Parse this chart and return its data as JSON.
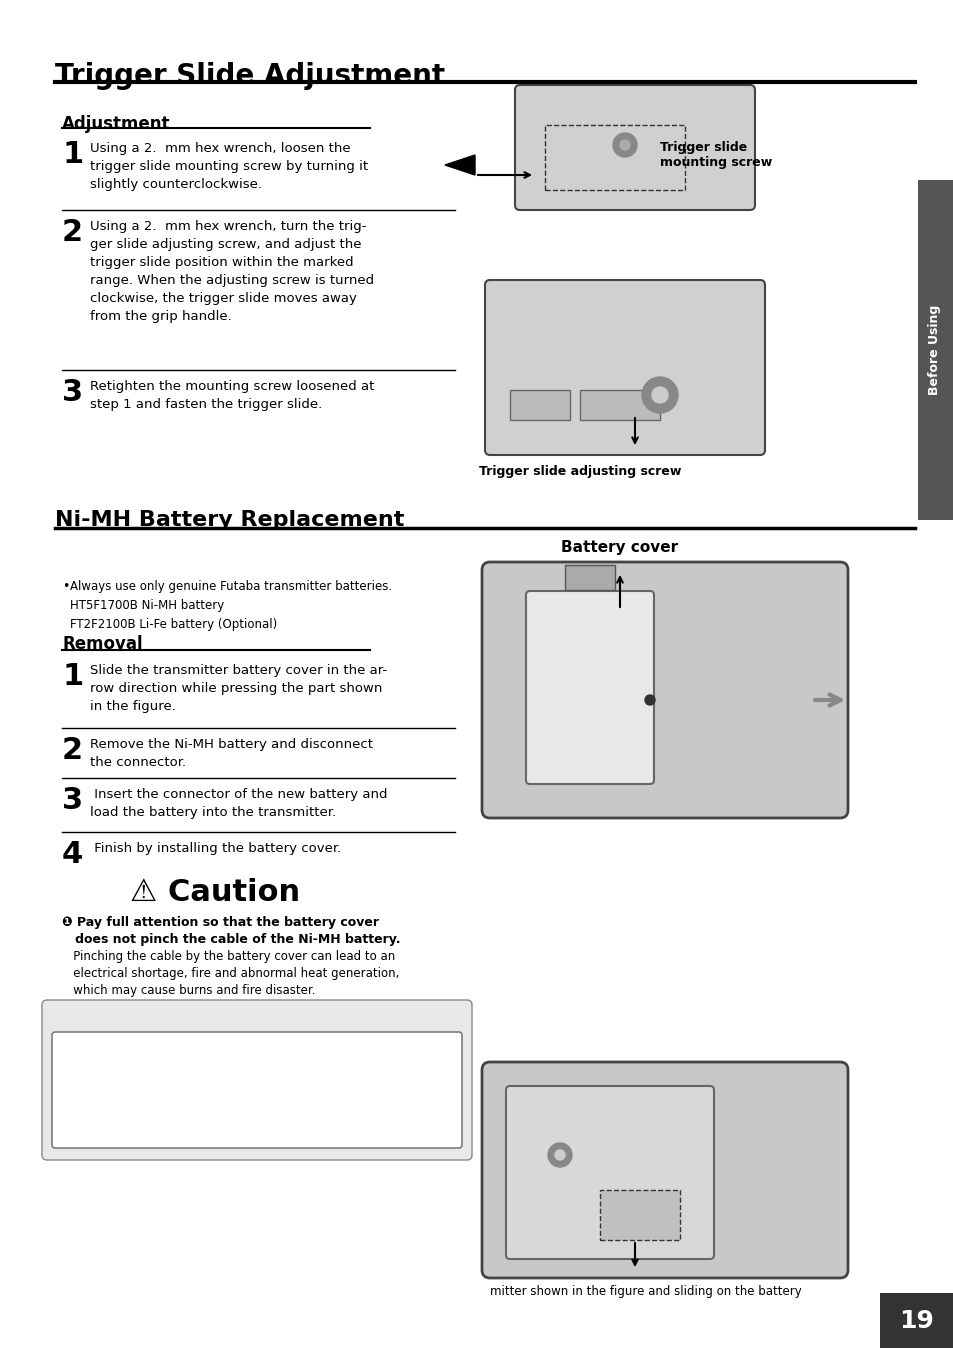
{
  "page_title": "Trigger Slide Adjustment",
  "section1_sub": "Adjustment",
  "step1_num": "1",
  "step1_text": "Using a 2.  mm hex wrench, loosen the\ntrigger slide mounting screw by turning it\nslightly counterclockwise.",
  "step2_num": "2",
  "step2_text": "Using a 2.  mm hex wrench, turn the trig-\nger slide adjusting screw, and adjust the\ntrigger slide position within the marked\nrange. When the adjusting screw is turned\nclockwise, the trigger slide moves away\nfrom the grip handle.",
  "step3_num": "3",
  "step3_text": "Retighten the mounting screw loosened at\nstep 1 and fasten the trigger slide.",
  "img1_label1": "Trigger slide\nmounting screw",
  "img1_label2": "Trigger slide adjusting screw",
  "section2_title": "Ni-MH Battery Replacement",
  "bullet_text": "Always use only genuine Futaba transmitter batteries.\nHT5F1700B Ni-MH battery\nFT2F2100B Li-Fe battery (Optional)",
  "section2_sub": "Removal",
  "rem1_num": "1",
  "rem1_text": "Slide the transmitter battery cover in the ar-\nrow direction while pressing the part shown\nin the figure.",
  "rem2_num": "2",
  "rem2_text": "Remove the Ni-MH battery and disconnect\nthe connector.",
  "rem3_num": "3",
  "rem3_text": " Insert the connector of the new battery and\nload the battery into the transmitter.",
  "rem4_num": "4",
  "rem4_text": " Finish by installing the battery cover.",
  "battery_label": "Battery cover",
  "caution_title": "⚠ Caution",
  "caution_bold": "❶ Pay full attention so that the battery cover\n   does not pinch the cable of the Ni-MH battery.",
  "caution_text": "   Pinching the cable by the battery cover can lead to an\n   electrical shortage, fire and abnormal heat generation,\n   which may cause burns and fire disaster.",
  "img_bottom_text": "mitter shown in the figure and sliding on the battery",
  "side_label": "Before Using",
  "page_num": "19",
  "bg_color": "#ffffff",
  "text_color": "#000000",
  "sidebar_color": "#555555",
  "caution_bg": "#e8e8e8"
}
